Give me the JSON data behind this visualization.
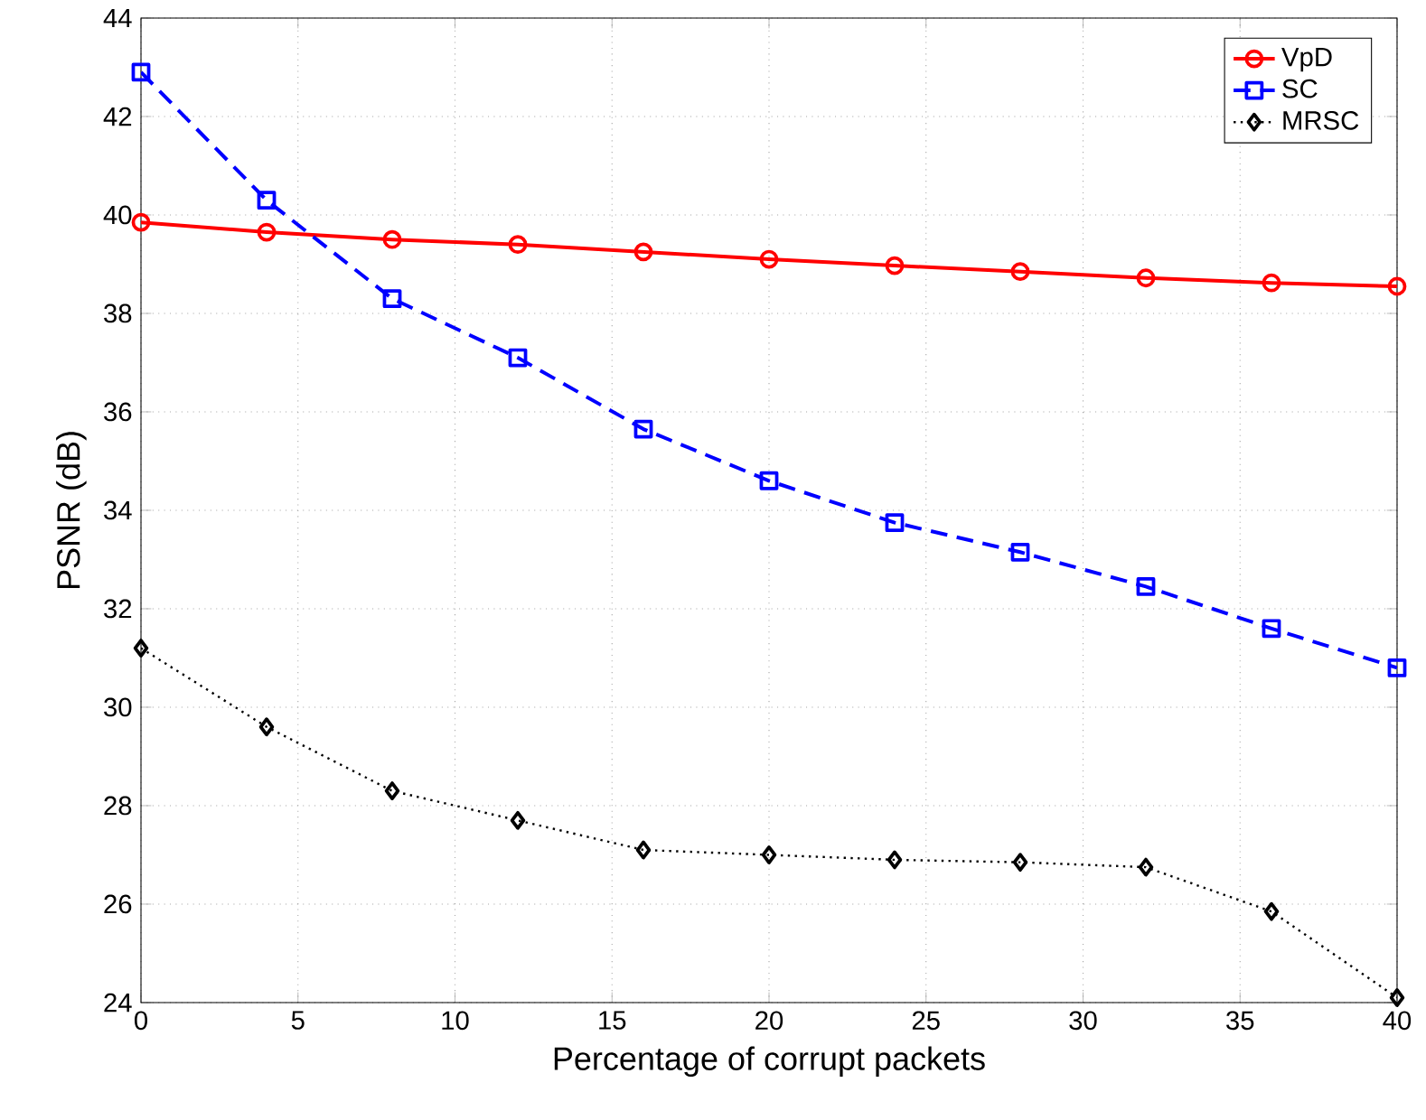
{
  "chart_data": {
    "type": "line",
    "xlabel": "Percentage of corrupt packets",
    "ylabel": "PSNR (dB)",
    "x": [
      0,
      4,
      8,
      12,
      16,
      20,
      24,
      28,
      32,
      36,
      40
    ],
    "series": [
      {
        "name": "VpD",
        "color": "#ff0000",
        "marker": "circle",
        "line_style": "solid",
        "values": [
          39.85,
          39.65,
          39.5,
          39.4,
          39.25,
          39.1,
          38.97,
          38.85,
          38.72,
          38.62,
          38.55
        ]
      },
      {
        "name": "SC",
        "color": "#0000ff",
        "marker": "square",
        "line_style": "dashed",
        "values": [
          42.9,
          40.3,
          38.3,
          37.1,
          35.65,
          34.6,
          33.75,
          33.15,
          32.45,
          31.6,
          30.8
        ]
      },
      {
        "name": "MRSC",
        "color": "#000000",
        "marker": "diamond",
        "line_style": "dotted",
        "values": [
          31.2,
          29.6,
          28.3,
          27.7,
          27.1,
          27.0,
          26.9,
          26.85,
          26.75,
          25.85,
          24.1
        ]
      }
    ],
    "xlim": [
      0,
      40
    ],
    "ylim": [
      24,
      44
    ],
    "xticks": [
      0,
      5,
      10,
      15,
      20,
      25,
      30,
      35,
      40
    ],
    "yticks": [
      24,
      26,
      28,
      30,
      32,
      34,
      36,
      38,
      40,
      42,
      44
    ],
    "grid": true,
    "legend": "top right"
  }
}
